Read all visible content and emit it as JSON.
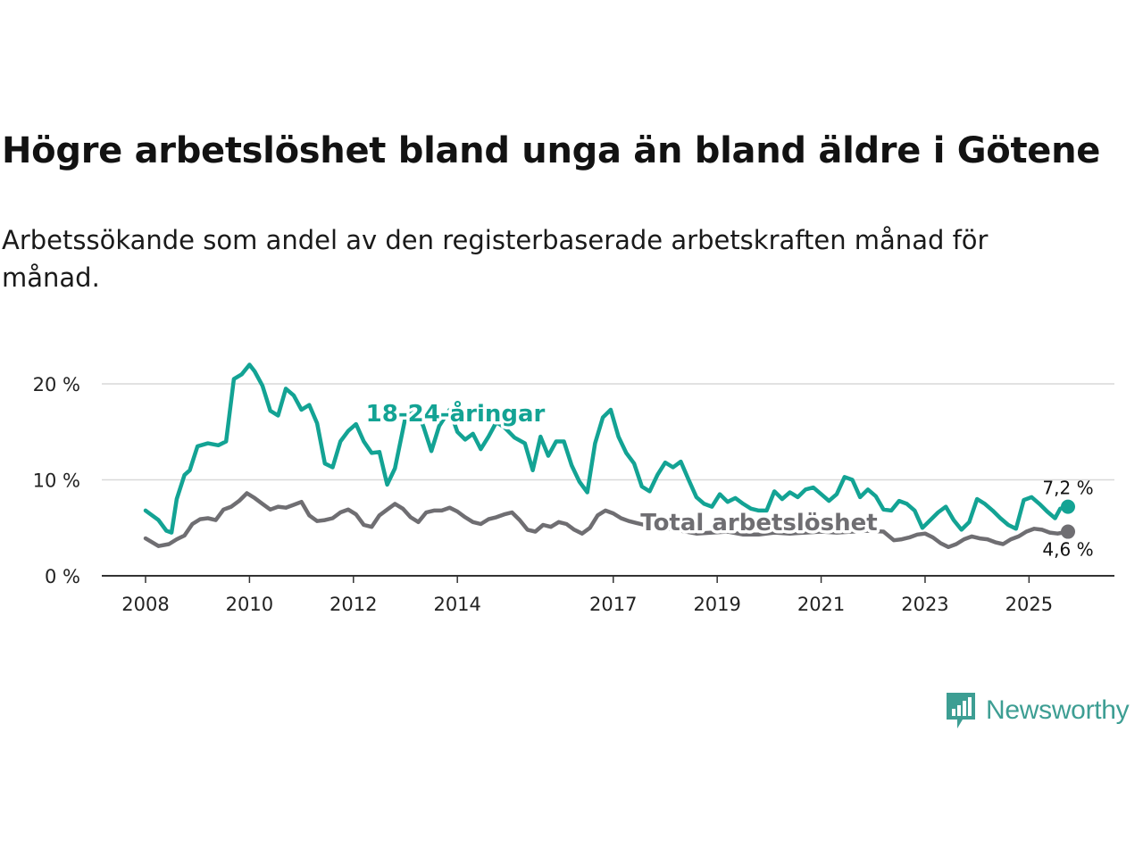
{
  "title": "Högre arbetslöshet bland unga än bland äldre i Götene",
  "subtitle": "Arbetssökande som andel av den registerbaserade arbetskraften månad för månad.",
  "brand": {
    "name": "Newsworthy",
    "icon": "newsworthy-logo-icon",
    "color": "#3d9e93"
  },
  "chart_data": {
    "type": "line",
    "title": "Högre arbetslöshet bland unga än bland äldre i Götene",
    "xlabel": "",
    "ylabel": "",
    "xlim": [
      2008.0,
      2025.75
    ],
    "ylim": [
      0,
      22
    ],
    "y_ticks": [
      0,
      10,
      20
    ],
    "y_tick_labels": [
      "0 %",
      "10 %",
      "20 %"
    ],
    "x_ticks": [
      2008,
      2010,
      2012,
      2014,
      2017,
      2019,
      2021,
      2023,
      2025
    ],
    "x_tick_labels": [
      "2008",
      "2010",
      "2012",
      "2014",
      "2017",
      "2019",
      "2021",
      "2023",
      "2025"
    ],
    "grid": true,
    "series": [
      {
        "name": "18–24-åringar",
        "label": "18-24-åringar",
        "color": "#13a394",
        "end_label": "7,2 %",
        "x": [
          2008.0,
          2008.25,
          2008.4,
          2008.5,
          2008.6,
          2008.75,
          2008.85,
          2009.0,
          2009.2,
          2009.4,
          2009.55,
          2009.7,
          2009.85,
          2010.0,
          2010.1,
          2010.25,
          2010.4,
          2010.55,
          2010.7,
          2010.85,
          2011.0,
          2011.15,
          2011.3,
          2011.45,
          2011.6,
          2011.75,
          2011.9,
          2012.05,
          2012.2,
          2012.35,
          2012.5,
          2012.65,
          2012.8,
          2013.0,
          2013.2,
          2013.35,
          2013.5,
          2013.65,
          2013.85,
          2014.0,
          2014.15,
          2014.3,
          2014.45,
          2014.6,
          2014.75,
          2014.9,
          2015.1,
          2015.3,
          2015.45,
          2015.6,
          2015.75,
          2015.9,
          2016.05,
          2016.2,
          2016.35,
          2016.5,
          2016.65,
          2016.8,
          2016.95,
          2017.1,
          2017.25,
          2017.4,
          2017.55,
          2017.7,
          2017.85,
          2018.0,
          2018.15,
          2018.3,
          2018.45,
          2018.6,
          2018.75,
          2018.9,
          2019.05,
          2019.2,
          2019.35,
          2019.5,
          2019.65,
          2019.8,
          2019.95,
          2020.1,
          2020.25,
          2020.4,
          2020.55,
          2020.7,
          2020.85,
          2021.0,
          2021.15,
          2021.3,
          2021.45,
          2021.6,
          2021.75,
          2021.9,
          2022.05,
          2022.2,
          2022.35,
          2022.5,
          2022.65,
          2022.8,
          2022.95,
          2023.1,
          2023.25,
          2023.4,
          2023.55,
          2023.7,
          2023.85,
          2024.0,
          2024.15,
          2024.3,
          2024.45,
          2024.6,
          2024.75,
          2024.9,
          2025.05,
          2025.2,
          2025.35,
          2025.5,
          2025.6,
          2025.75
        ],
        "y": [
          6.8,
          5.8,
          4.7,
          4.5,
          8.0,
          10.5,
          11.0,
          13.5,
          13.8,
          13.6,
          14.0,
          20.5,
          21.0,
          22.0,
          21.3,
          19.8,
          17.2,
          16.7,
          19.5,
          18.8,
          17.3,
          17.8,
          15.9,
          11.7,
          11.3,
          14.0,
          15.1,
          15.8,
          14.0,
          12.8,
          12.9,
          9.5,
          11.2,
          16.5,
          17.5,
          15.5,
          13.0,
          15.6,
          17.3,
          15.0,
          14.2,
          14.8,
          13.2,
          14.5,
          16.0,
          15.5,
          14.4,
          13.8,
          11.0,
          14.5,
          12.5,
          14.0,
          14.0,
          11.5,
          9.8,
          8.7,
          13.8,
          16.5,
          17.3,
          14.5,
          12.8,
          11.7,
          9.3,
          8.8,
          10.5,
          11.8,
          11.3,
          11.9,
          10.0,
          8.2,
          7.5,
          7.2,
          8.5,
          7.7,
          8.1,
          7.5,
          7.0,
          6.8,
          6.8,
          8.8,
          8.0,
          8.7,
          8.2,
          9.0,
          9.2,
          8.5,
          7.8,
          8.5,
          10.3,
          10.0,
          8.2,
          9.0,
          8.3,
          6.9,
          6.8,
          7.8,
          7.5,
          6.8,
          5.0,
          5.8,
          6.6,
          7.2,
          5.8,
          4.8,
          5.6,
          8.0,
          7.5,
          6.8,
          6.0,
          5.3,
          4.9,
          7.9,
          8.2,
          7.5,
          6.7,
          6.0,
          7.0,
          7.2
        ]
      },
      {
        "name": "Total arbetslöshet",
        "label": "Total arbetslöshet",
        "color": "#6f6e72",
        "end_label": "4,6 %",
        "x": [
          2008.0,
          2008.25,
          2008.45,
          2008.6,
          2008.75,
          2008.9,
          2009.05,
          2009.2,
          2009.35,
          2009.5,
          2009.65,
          2009.8,
          2009.95,
          2010.1,
          2010.25,
          2010.4,
          2010.55,
          2010.7,
          2010.85,
          2011.0,
          2011.15,
          2011.3,
          2011.45,
          2011.6,
          2011.75,
          2011.9,
          2012.05,
          2012.2,
          2012.35,
          2012.5,
          2012.65,
          2012.8,
          2012.95,
          2013.1,
          2013.25,
          2013.4,
          2013.55,
          2013.7,
          2013.85,
          2014.0,
          2014.15,
          2014.3,
          2014.45,
          2014.6,
          2014.75,
          2014.9,
          2015.05,
          2015.2,
          2015.35,
          2015.5,
          2015.65,
          2015.8,
          2015.95,
          2016.1,
          2016.25,
          2016.4,
          2016.55,
          2016.7,
          2016.85,
          2017.0,
          2017.15,
          2017.3,
          2017.45,
          2017.6,
          2017.8,
          2018.0,
          2018.3,
          2018.6,
          2018.9,
          2019.2,
          2019.5,
          2019.8,
          2020.1,
          2020.4,
          2020.7,
          2021.0,
          2021.3,
          2021.6,
          2021.9,
          2022.2,
          2022.4,
          2022.55,
          2022.7,
          2022.85,
          2023.0,
          2023.15,
          2023.3,
          2023.45,
          2023.6,
          2023.75,
          2023.9,
          2024.05,
          2024.2,
          2024.35,
          2024.5,
          2024.65,
          2024.8,
          2024.95,
          2025.1,
          2025.25,
          2025.4,
          2025.55,
          2025.75
        ],
        "y": [
          3.9,
          3.1,
          3.3,
          3.8,
          4.2,
          5.4,
          5.9,
          6.0,
          5.8,
          6.9,
          7.2,
          7.8,
          8.6,
          8.1,
          7.5,
          6.9,
          7.2,
          7.1,
          7.4,
          7.7,
          6.3,
          5.7,
          5.8,
          6.0,
          6.6,
          6.9,
          6.4,
          5.3,
          5.1,
          6.3,
          6.9,
          7.5,
          7.0,
          6.1,
          5.6,
          6.6,
          6.8,
          6.8,
          7.1,
          6.7,
          6.1,
          5.6,
          5.4,
          5.9,
          6.1,
          6.4,
          6.6,
          5.8,
          4.8,
          4.6,
          5.3,
          5.1,
          5.6,
          5.4,
          4.8,
          4.4,
          5.0,
          6.3,
          6.8,
          6.5,
          6.0,
          5.7,
          5.5,
          5.3,
          5.2,
          5.0,
          4.7,
          4.4,
          4.5,
          4.6,
          4.3,
          4.3,
          4.5,
          4.4,
          4.5,
          4.6,
          4.5,
          4.6,
          4.7,
          4.6,
          3.7,
          3.8,
          4.0,
          4.3,
          4.4,
          4.0,
          3.4,
          3.0,
          3.3,
          3.8,
          4.1,
          3.9,
          3.8,
          3.5,
          3.3,
          3.8,
          4.1,
          4.6,
          4.9,
          4.8,
          4.5,
          4.4,
          4.6
        ]
      }
    ]
  }
}
